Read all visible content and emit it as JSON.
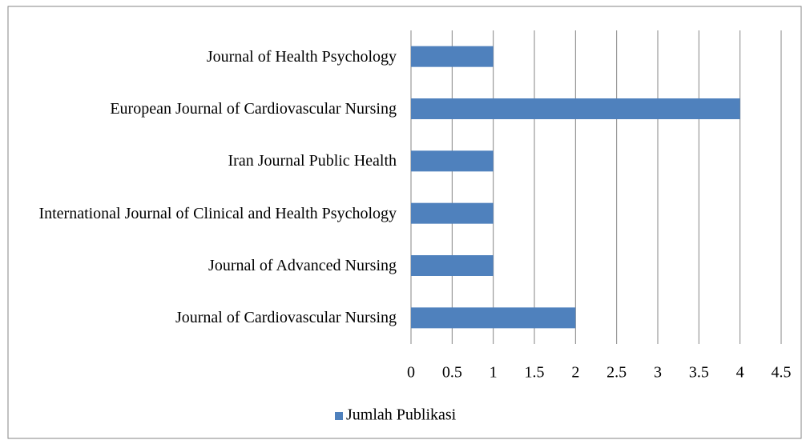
{
  "chart_data": {
    "type": "barh",
    "categories": [
      "Journal of Health Psychology",
      "European Journal of Cardiovascular Nursing",
      "Iran Journal Public Health",
      "International Journal of Clinical and Health Psychology",
      "Journal of Advanced Nursing",
      "Journal of Cardiovascular Nursing"
    ],
    "series": [
      {
        "name": "Jumlah Publikasi",
        "color": "#4f81bd",
        "values": [
          1,
          4,
          1,
          1,
          1,
          2
        ]
      }
    ],
    "xlim": [
      0,
      4.5
    ],
    "xticks": [
      0,
      0.5,
      1,
      1.5,
      2,
      2.5,
      3,
      3.5,
      4,
      4.5
    ],
    "grid": true,
    "legend": "bottom"
  }
}
